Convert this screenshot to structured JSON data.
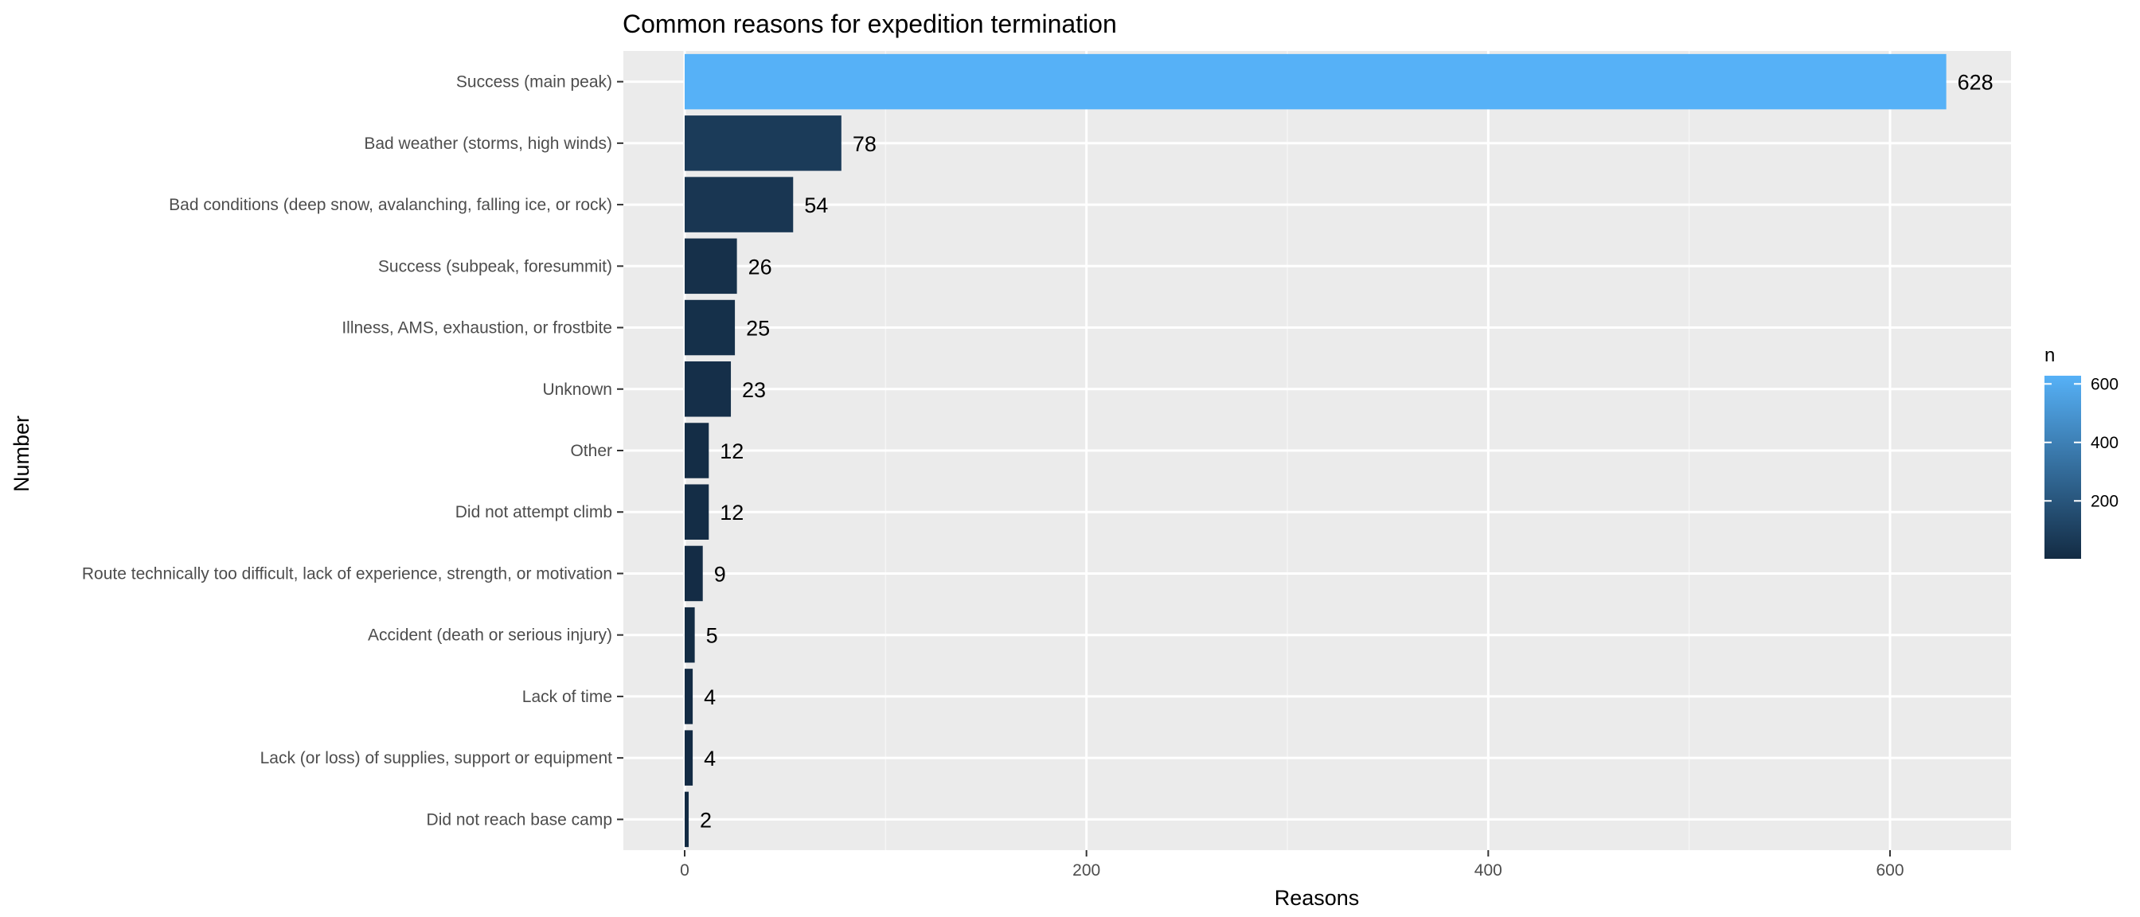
{
  "chart_data": {
    "type": "bar",
    "orientation": "horizontal",
    "title": "Common reasons for expedition termination",
    "xlabel": "Reasons",
    "ylabel": "Number",
    "xlim": [
      0,
      660
    ],
    "xticks": [
      0,
      200,
      400,
      600
    ],
    "grid": true,
    "categories": [
      "Success (main peak)",
      "Bad weather (storms, high winds)",
      "Bad conditions (deep snow, avalanching, falling ice, or rock)",
      "Success (subpeak, foresummit)",
      "Illness, AMS, exhaustion, or frostbite",
      "Unknown",
      "Other",
      "Did not attempt climb",
      "Route technically too difficult, lack of experience, strength, or motivation",
      "Accident (death or serious injury)",
      "Lack of time",
      "Lack (or loss) of supplies, support or equipment",
      "Did not reach base camp"
    ],
    "values": [
      628,
      78,
      54,
      26,
      25,
      23,
      12,
      12,
      9,
      5,
      4,
      4,
      2
    ],
    "legend": {
      "title": "n",
      "position": "right",
      "ticks": [
        200,
        400,
        600
      ],
      "range": [
        2,
        628
      ],
      "colors": {
        "low": "#132b43",
        "high": "#56b1f7"
      }
    },
    "colors": {
      "panel_background": "#ebebeb",
      "grid_major": "#ffffff",
      "grid_minor": "#f5f5f5"
    }
  }
}
